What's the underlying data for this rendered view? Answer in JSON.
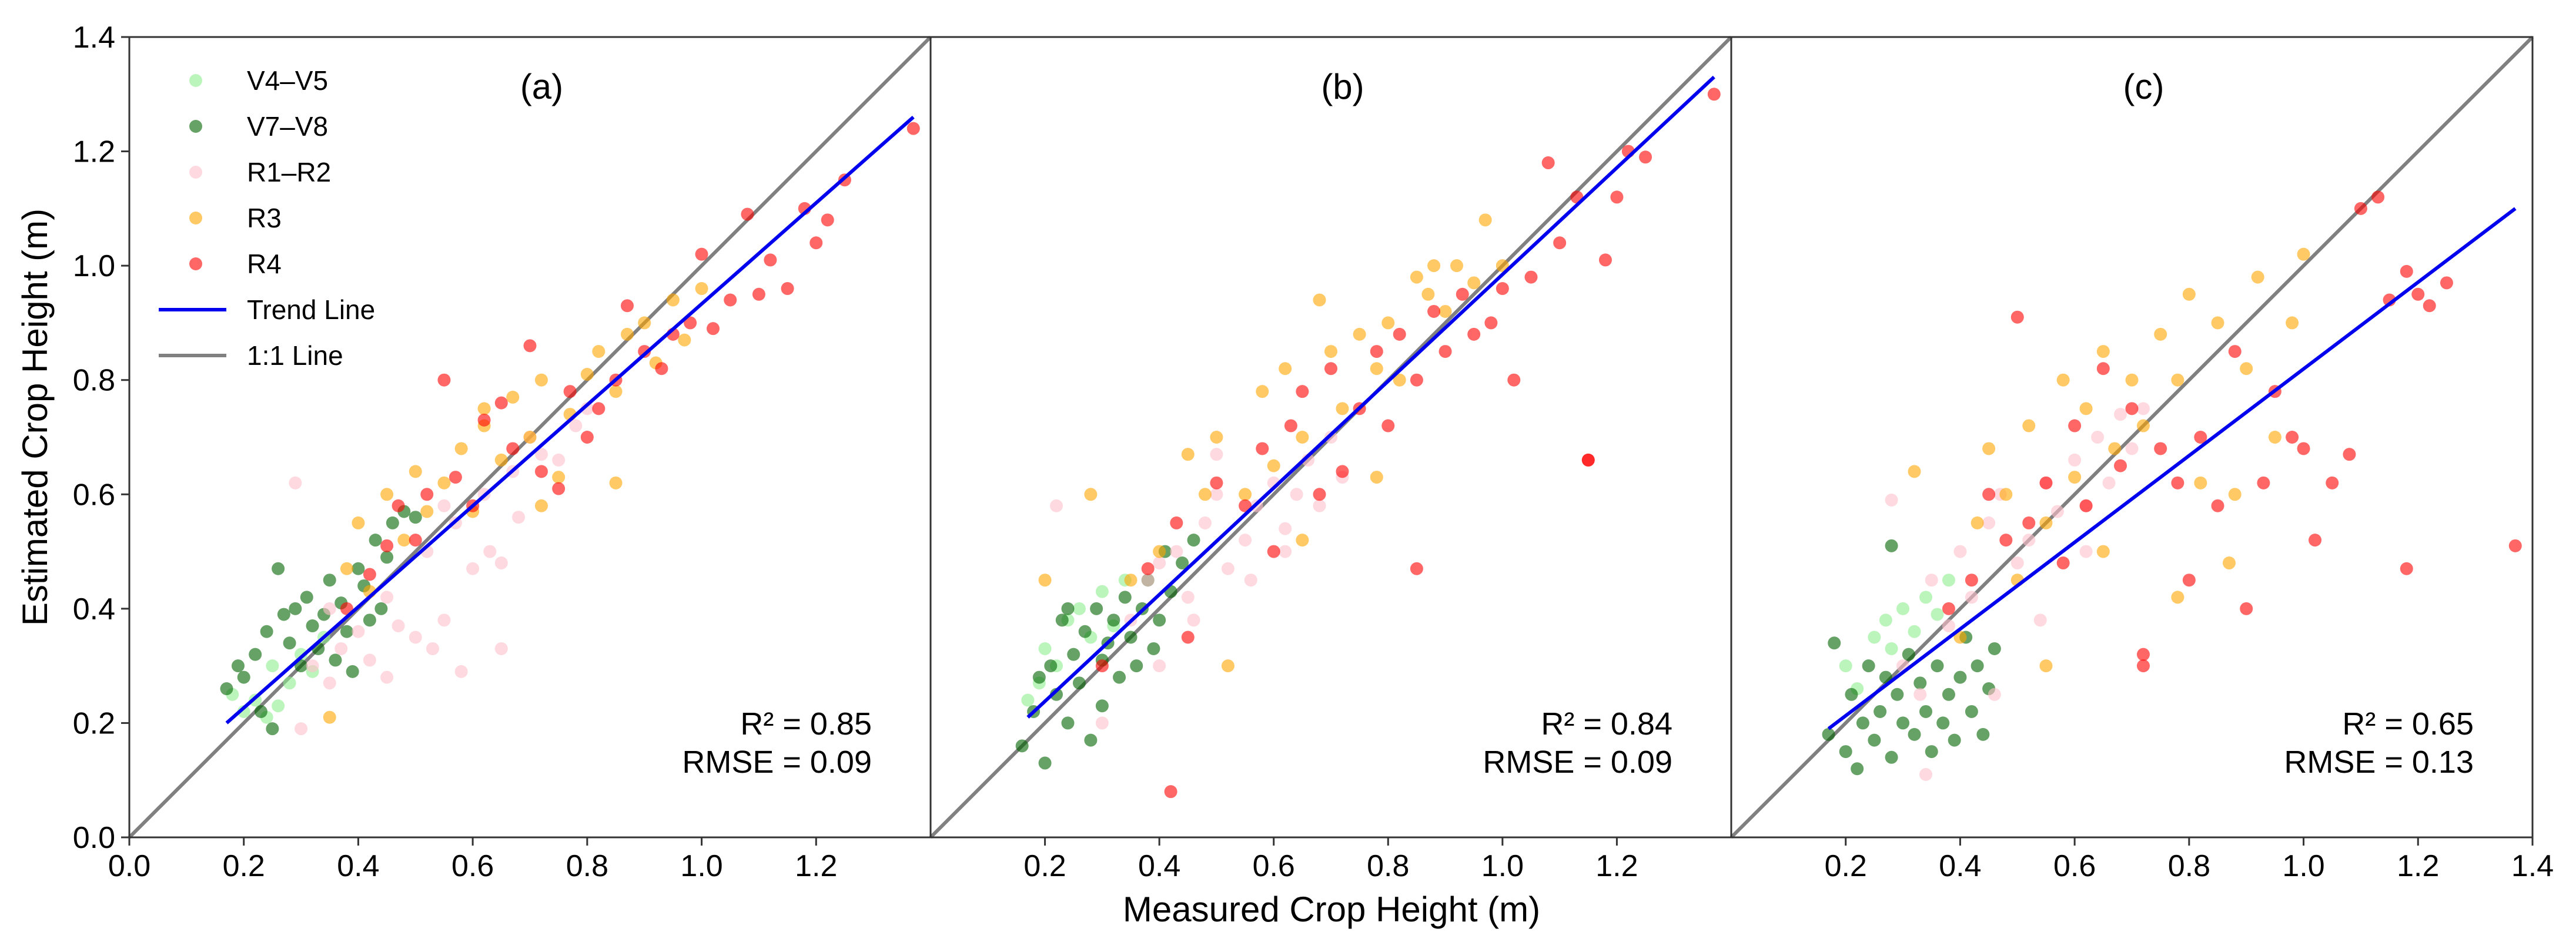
{
  "figure": {
    "xlabel": "Measured Crop Height (m)",
    "ylabel": "Estimated Crop Height (m)"
  },
  "legend": {
    "entries": [
      {
        "label": "V4–V5",
        "kind": "marker",
        "color": "#90ee90"
      },
      {
        "label": "V7–V8",
        "kind": "marker",
        "color": "#006400"
      },
      {
        "label": "R1–R2",
        "kind": "marker",
        "color": "#ffc0cb"
      },
      {
        "label": "R3",
        "kind": "marker",
        "color": "#ffa500"
      },
      {
        "label": "R4",
        "kind": "marker",
        "color": "#ff0000"
      },
      {
        "label": "Trend Line",
        "kind": "line",
        "color": "#0000ee"
      },
      {
        "label": "1:1 Line",
        "kind": "line",
        "color": "#808080"
      }
    ]
  },
  "chart_data": [
    {
      "type": "scatter",
      "panel_label": "(a)",
      "xlim": [
        0.0,
        1.4
      ],
      "ylim": [
        0.0,
        1.4
      ],
      "x_ticks": [
        "0.0",
        "0.2",
        "0.4",
        "0.6",
        "0.8",
        "1.0",
        "1.2"
      ],
      "y_ticks": [
        "0.0",
        "0.2",
        "0.4",
        "0.6",
        "0.8",
        "1.0",
        "1.2",
        "1.4"
      ],
      "r2_text": "R² = 0.85",
      "rmse_text": "RMSE = 0.09",
      "trend_line": {
        "x": [
          0.17,
          1.37
        ],
        "y": [
          0.2,
          1.26
        ]
      },
      "one_to_one": {
        "x": [
          0.0,
          1.4
        ],
        "y": [
          0.0,
          1.4
        ]
      },
      "series": [
        {
          "name": "V4–V5",
          "color": "#90ee90",
          "x": [
            0.18,
            0.2,
            0.22,
            0.24,
            0.25,
            0.26,
            0.28,
            0.3,
            0.32,
            0.34
          ],
          "y": [
            0.25,
            0.22,
            0.24,
            0.21,
            0.3,
            0.23,
            0.27,
            0.32,
            0.29,
            0.35
          ]
        },
        {
          "name": "V7–V8",
          "color": "#006400",
          "x": [
            0.17,
            0.19,
            0.2,
            0.22,
            0.23,
            0.24,
            0.25,
            0.26,
            0.27,
            0.28,
            0.29,
            0.3,
            0.31,
            0.32,
            0.33,
            0.34,
            0.35,
            0.36,
            0.37,
            0.38,
            0.39,
            0.4,
            0.41,
            0.42,
            0.43,
            0.44,
            0.45,
            0.46,
            0.48,
            0.5
          ],
          "y": [
            0.26,
            0.3,
            0.28,
            0.32,
            0.22,
            0.36,
            0.19,
            0.47,
            0.39,
            0.34,
            0.4,
            0.3,
            0.42,
            0.37,
            0.33,
            0.39,
            0.45,
            0.31,
            0.41,
            0.36,
            0.29,
            0.47,
            0.44,
            0.38,
            0.52,
            0.4,
            0.49,
            0.55,
            0.57,
            0.56
          ]
        },
        {
          "name": "R1–R2",
          "color": "#ffc0cb",
          "x": [
            0.29,
            0.3,
            0.32,
            0.35,
            0.37,
            0.4,
            0.42,
            0.45,
            0.47,
            0.5,
            0.52,
            0.53,
            0.55,
            0.57,
            0.58,
            0.6,
            0.62,
            0.63,
            0.65,
            0.67,
            0.68,
            0.7,
            0.72,
            0.75,
            0.78,
            0.8,
            0.35,
            0.45,
            0.55,
            0.65
          ],
          "y": [
            0.62,
            0.19,
            0.3,
            0.27,
            0.33,
            0.36,
            0.31,
            0.42,
            0.37,
            0.35,
            0.5,
            0.33,
            0.38,
            0.55,
            0.29,
            0.47,
            0.6,
            0.5,
            0.33,
            0.64,
            0.56,
            0.7,
            0.67,
            0.66,
            0.72,
            0.75,
            0.4,
            0.28,
            0.58,
            0.48
          ]
        },
        {
          "name": "R3",
          "color": "#ffa500",
          "x": [
            0.35,
            0.38,
            0.4,
            0.42,
            0.45,
            0.48,
            0.5,
            0.52,
            0.55,
            0.58,
            0.6,
            0.62,
            0.65,
            0.67,
            0.7,
            0.72,
            0.75,
            0.77,
            0.8,
            0.82,
            0.85,
            0.87,
            0.9,
            0.92,
            0.95,
            0.97,
            1.0,
            0.72,
            0.62,
            0.85
          ],
          "y": [
            0.21,
            0.47,
            0.55,
            0.43,
            0.6,
            0.52,
            0.64,
            0.57,
            0.62,
            0.68,
            0.57,
            0.72,
            0.66,
            0.77,
            0.7,
            0.8,
            0.63,
            0.74,
            0.81,
            0.85,
            0.78,
            0.88,
            0.9,
            0.83,
            0.94,
            0.87,
            0.96,
            0.58,
            0.75,
            0.62
          ]
        },
        {
          "name": "R4",
          "color": "#ff0000",
          "x": [
            0.38,
            0.42,
            0.45,
            0.47,
            0.5,
            0.52,
            0.55,
            0.57,
            0.6,
            0.62,
            0.65,
            0.67,
            0.7,
            0.72,
            0.75,
            0.77,
            0.8,
            0.82,
            0.85,
            0.87,
            0.9,
            0.93,
            0.95,
            0.98,
            1.0,
            1.02,
            1.05,
            1.08,
            1.1,
            1.12,
            1.15,
            1.18,
            1.2,
            1.22,
            1.25,
            1.37
          ],
          "y": [
            0.4,
            0.46,
            0.51,
            0.58,
            0.52,
            0.6,
            0.8,
            0.63,
            0.58,
            0.73,
            0.76,
            0.68,
            0.86,
            0.64,
            0.61,
            0.78,
            0.7,
            0.75,
            0.8,
            0.93,
            0.85,
            0.82,
            0.88,
            0.9,
            1.02,
            0.89,
            0.94,
            1.09,
            0.95,
            1.01,
            0.96,
            1.1,
            1.04,
            1.08,
            1.15,
            1.24
          ]
        }
      ]
    },
    {
      "type": "scatter",
      "panel_label": "(b)",
      "xlim": [
        0.0,
        1.4
      ],
      "ylim": [
        0.0,
        1.4
      ],
      "x_ticks": [
        "0.2",
        "0.4",
        "0.6",
        "0.8",
        "1.0",
        "1.2"
      ],
      "r2_text": "R² = 0.84",
      "rmse_text": "RMSE = 0.09",
      "trend_line": {
        "x": [
          0.17,
          1.37
        ],
        "y": [
          0.21,
          1.33
        ]
      },
      "one_to_one": {
        "x": [
          0.0,
          1.4
        ],
        "y": [
          0.0,
          1.4
        ]
      },
      "series": [
        {
          "name": "V4–V5",
          "color": "#90ee90",
          "x": [
            0.17,
            0.19,
            0.2,
            0.22,
            0.24,
            0.26,
            0.28,
            0.3,
            0.32,
            0.34
          ],
          "y": [
            0.24,
            0.27,
            0.33,
            0.3,
            0.38,
            0.4,
            0.35,
            0.43,
            0.37,
            0.45
          ]
        },
        {
          "name": "V7–V8",
          "color": "#006400",
          "x": [
            0.16,
            0.18,
            0.19,
            0.2,
            0.21,
            0.22,
            0.23,
            0.24,
            0.25,
            0.26,
            0.27,
            0.28,
            0.29,
            0.3,
            0.31,
            0.32,
            0.33,
            0.34,
            0.35,
            0.36,
            0.37,
            0.38,
            0.39,
            0.4,
            0.41,
            0.42,
            0.44,
            0.46,
            0.24,
            0.3
          ],
          "y": [
            0.16,
            0.22,
            0.28,
            0.13,
            0.3,
            0.25,
            0.38,
            0.2,
            0.32,
            0.27,
            0.36,
            0.17,
            0.4,
            0.31,
            0.34,
            0.38,
            0.28,
            0.42,
            0.35,
            0.3,
            0.4,
            0.45,
            0.33,
            0.38,
            0.5,
            0.43,
            0.48,
            0.52,
            0.4,
            0.23
          ]
        },
        {
          "name": "R1–R2",
          "color": "#ffc0cb",
          "x": [
            0.22,
            0.3,
            0.35,
            0.38,
            0.4,
            0.43,
            0.45,
            0.48,
            0.5,
            0.52,
            0.55,
            0.57,
            0.6,
            0.62,
            0.64,
            0.66,
            0.68,
            0.7,
            0.72,
            0.5,
            0.4,
            0.56,
            0.62,
            0.46
          ],
          "y": [
            0.58,
            0.2,
            0.38,
            0.45,
            0.48,
            0.5,
            0.42,
            0.55,
            0.6,
            0.47,
            0.52,
            0.58,
            0.62,
            0.54,
            0.6,
            0.66,
            0.58,
            0.7,
            0.63,
            0.67,
            0.3,
            0.45,
            0.5,
            0.38
          ]
        },
        {
          "name": "R3",
          "color": "#ffa500",
          "x": [
            0.2,
            0.28,
            0.35,
            0.4,
            0.45,
            0.48,
            0.5,
            0.55,
            0.58,
            0.6,
            0.62,
            0.65,
            0.68,
            0.7,
            0.72,
            0.75,
            0.78,
            0.8,
            0.82,
            0.85,
            0.87,
            0.88,
            0.9,
            0.92,
            0.95,
            0.97,
            1.0,
            0.52,
            0.65,
            0.78
          ],
          "y": [
            0.45,
            0.6,
            0.45,
            0.5,
            0.67,
            0.6,
            0.7,
            0.6,
            0.78,
            0.65,
            0.82,
            0.7,
            0.94,
            0.85,
            0.75,
            0.88,
            0.82,
            0.9,
            0.8,
            0.98,
            0.95,
            1.0,
            0.92,
            1.0,
            0.97,
            1.08,
            1.0,
            0.3,
            0.52,
            0.63
          ]
        },
        {
          "name": "R4",
          "color": "#ff0000",
          "x": [
            0.3,
            0.38,
            0.42,
            0.43,
            0.45,
            0.5,
            0.55,
            0.58,
            0.6,
            0.63,
            0.65,
            0.68,
            0.7,
            0.72,
            0.75,
            0.78,
            0.8,
            0.82,
            0.85,
            0.88,
            0.9,
            0.93,
            0.95,
            0.98,
            1.0,
            1.02,
            1.05,
            1.08,
            1.1,
            1.13,
            1.15,
            1.18,
            1.2,
            1.22,
            1.25,
            1.37,
            0.85,
            1.15
          ],
          "y": [
            0.3,
            0.47,
            0.08,
            0.55,
            0.35,
            0.62,
            0.58,
            0.68,
            0.5,
            0.72,
            0.78,
            0.6,
            0.82,
            0.64,
            0.75,
            0.85,
            0.72,
            0.88,
            0.8,
            0.92,
            0.85,
            0.95,
            0.88,
            0.9,
            0.96,
            0.8,
            0.98,
            1.18,
            1.04,
            1.12,
            0.66,
            1.01,
            1.12,
            1.2,
            1.19,
            1.3,
            0.47,
            0.66
          ]
        }
      ]
    },
    {
      "type": "scatter",
      "panel_label": "(c)",
      "xlim": [
        0.0,
        1.4
      ],
      "ylim": [
        0.0,
        1.4
      ],
      "x_ticks": [
        "0.2",
        "0.4",
        "0.6",
        "0.8",
        "1.0",
        "1.2",
        "1.4"
      ],
      "r2_text": "R² = 0.65",
      "rmse_text": "RMSE = 0.13",
      "trend_line": {
        "x": [
          0.17,
          1.37
        ],
        "y": [
          0.19,
          1.1
        ]
      },
      "one_to_one": {
        "x": [
          0.0,
          1.4
        ],
        "y": [
          0.0,
          1.4
        ]
      },
      "series": [
        {
          "name": "V4–V5",
          "color": "#90ee90",
          "x": [
            0.2,
            0.22,
            0.25,
            0.27,
            0.28,
            0.3,
            0.32,
            0.34,
            0.36,
            0.38
          ],
          "y": [
            0.3,
            0.26,
            0.35,
            0.38,
            0.33,
            0.4,
            0.36,
            0.42,
            0.39,
            0.45
          ]
        },
        {
          "name": "V7–V8",
          "color": "#006400",
          "x": [
            0.17,
            0.18,
            0.2,
            0.21,
            0.22,
            0.23,
            0.24,
            0.25,
            0.26,
            0.27,
            0.28,
            0.29,
            0.3,
            0.31,
            0.32,
            0.33,
            0.34,
            0.35,
            0.36,
            0.37,
            0.38,
            0.39,
            0.4,
            0.41,
            0.42,
            0.43,
            0.44,
            0.45,
            0.46,
            0.28
          ],
          "y": [
            0.18,
            0.34,
            0.15,
            0.25,
            0.12,
            0.2,
            0.3,
            0.17,
            0.22,
            0.28,
            0.14,
            0.25,
            0.2,
            0.32,
            0.18,
            0.27,
            0.22,
            0.15,
            0.3,
            0.2,
            0.25,
            0.17,
            0.28,
            0.35,
            0.22,
            0.3,
            0.18,
            0.26,
            0.33,
            0.51
          ]
        },
        {
          "name": "R1–R2",
          "color": "#ffc0cb",
          "x": [
            0.28,
            0.3,
            0.33,
            0.35,
            0.38,
            0.4,
            0.42,
            0.45,
            0.47,
            0.5,
            0.52,
            0.55,
            0.57,
            0.6,
            0.62,
            0.64,
            0.66,
            0.68,
            0.7,
            0.72,
            0.46,
            0.54,
            0.34,
            0.62
          ],
          "y": [
            0.59,
            0.3,
            0.25,
            0.45,
            0.37,
            0.5,
            0.42,
            0.55,
            0.6,
            0.48,
            0.52,
            0.62,
            0.57,
            0.66,
            0.58,
            0.7,
            0.62,
            0.74,
            0.68,
            0.75,
            0.25,
            0.38,
            0.11,
            0.5
          ]
        },
        {
          "name": "R3",
          "color": "#ffa500",
          "x": [
            0.32,
            0.4,
            0.43,
            0.45,
            0.48,
            0.5,
            0.52,
            0.55,
            0.58,
            0.6,
            0.62,
            0.65,
            0.67,
            0.7,
            0.72,
            0.75,
            0.78,
            0.8,
            0.82,
            0.85,
            0.87,
            0.9,
            0.92,
            0.95,
            0.98,
            1.0,
            0.55,
            0.65,
            0.78,
            0.88
          ],
          "y": [
            0.64,
            0.35,
            0.55,
            0.68,
            0.6,
            0.45,
            0.72,
            0.55,
            0.8,
            0.63,
            0.75,
            0.85,
            0.68,
            0.8,
            0.72,
            0.88,
            0.8,
            0.95,
            0.62,
            0.9,
            0.48,
            0.82,
            0.98,
            0.7,
            0.9,
            1.02,
            0.3,
            0.5,
            0.42,
            0.6
          ]
        },
        {
          "name": "R4",
          "color": "#ff0000",
          "x": [
            0.38,
            0.42,
            0.45,
            0.48,
            0.5,
            0.52,
            0.55,
            0.58,
            0.6,
            0.62,
            0.65,
            0.68,
            0.7,
            0.72,
            0.75,
            0.78,
            0.8,
            0.82,
            0.85,
            0.88,
            0.9,
            0.93,
            0.95,
            0.98,
            1.0,
            1.02,
            1.05,
            1.08,
            1.1,
            1.13,
            1.15,
            1.18,
            1.2,
            1.22,
            1.25,
            1.37,
            0.72,
            1.18
          ],
          "y": [
            0.4,
            0.45,
            0.6,
            0.52,
            0.91,
            0.55,
            0.62,
            0.48,
            0.72,
            0.58,
            0.82,
            0.65,
            0.75,
            0.32,
            0.68,
            0.62,
            0.45,
            0.7,
            0.58,
            0.85,
            0.4,
            0.62,
            0.78,
            0.7,
            0.68,
            0.52,
            0.62,
            0.67,
            1.1,
            1.12,
            0.94,
            0.99,
            0.95,
            0.93,
            0.97,
            0.51,
            0.3,
            0.47
          ]
        }
      ]
    }
  ]
}
